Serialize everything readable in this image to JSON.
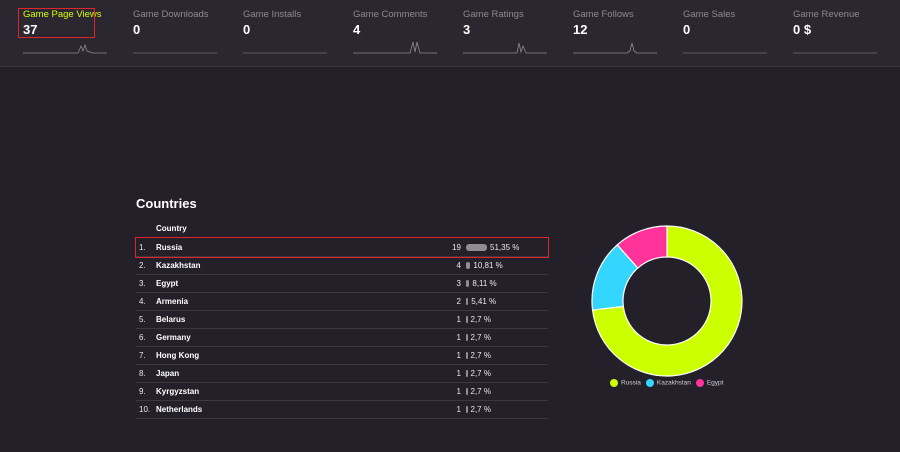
{
  "metrics": [
    {
      "label": "Game Page Views",
      "value": "37"
    },
    {
      "label": "Game Downloads",
      "value": "0"
    },
    {
      "label": "Game Installs",
      "value": "0"
    },
    {
      "label": "Game Comments",
      "value": "4"
    },
    {
      "label": "Game Ratings",
      "value": "3"
    },
    {
      "label": "Game Follows",
      "value": "12"
    },
    {
      "label": "Game Sales",
      "value": "0"
    },
    {
      "label": "Game Revenue",
      "value": "0 $"
    }
  ],
  "countries": {
    "title": "Countries",
    "column_header": "Country",
    "rows": [
      {
        "rank": "1.",
        "country": "Russia",
        "count": "19",
        "percent": "51,35 %",
        "share": 51.35
      },
      {
        "rank": "2.",
        "country": "Kazakhstan",
        "count": "4",
        "percent": "10,81 %",
        "share": 10.81
      },
      {
        "rank": "3.",
        "country": "Egypt",
        "count": "3",
        "percent": "8,11 %",
        "share": 8.11
      },
      {
        "rank": "4.",
        "country": "Armenia",
        "count": "2",
        "percent": "5,41 %",
        "share": 5.41
      },
      {
        "rank": "5.",
        "country": "Belarus",
        "count": "1",
        "percent": "2,7 %",
        "share": 2.7
      },
      {
        "rank": "6.",
        "country": "Germany",
        "count": "1",
        "percent": "2,7 %",
        "share": 2.7
      },
      {
        "rank": "7.",
        "country": "Hong Kong",
        "count": "1",
        "percent": "2,7 %",
        "share": 2.7
      },
      {
        "rank": "8.",
        "country": "Japan",
        "count": "1",
        "percent": "2,7 %",
        "share": 2.7
      },
      {
        "rank": "9.",
        "country": "Kyrgyzstan",
        "count": "1",
        "percent": "2,7 %",
        "share": 2.7
      },
      {
        "rank": "10.",
        "country": "Netherlands",
        "count": "1",
        "percent": "2,7 %",
        "share": 2.7
      }
    ]
  },
  "chart_data": {
    "type": "pie",
    "variant": "donut",
    "labels": [
      "Russia",
      "Kazakhstan",
      "Egypt"
    ],
    "values": [
      19,
      4,
      3
    ],
    "colors": [
      "#ccff00",
      "#33d6ff",
      "#ff3399"
    ],
    "legend_position": "bottom"
  },
  "colors": {
    "accent": "#d7ff00",
    "highlight_border": "#e0252a",
    "background": "#232029"
  }
}
